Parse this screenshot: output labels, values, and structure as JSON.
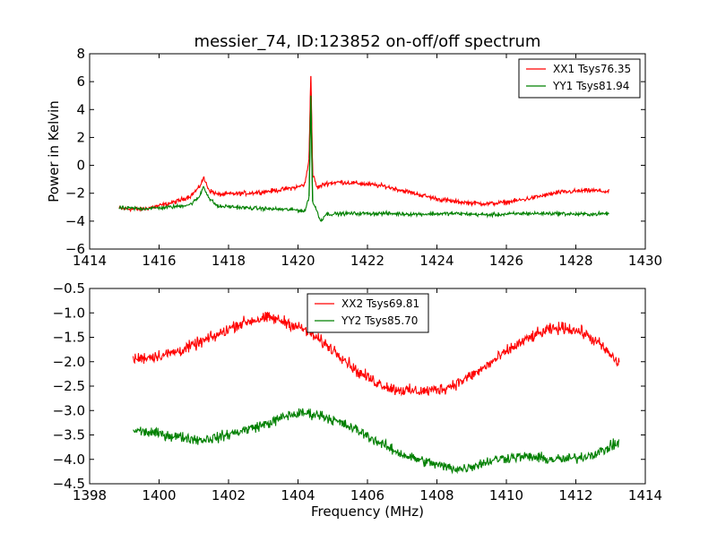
{
  "figure": {
    "title": "messier_74, ID:123852 on-off/off spectrum"
  },
  "chart_data": [
    {
      "type": "line",
      "title": "messier_74, ID:123852 on-off/off spectrum",
      "xlabel": "",
      "ylabel": "Power in Kelvin",
      "xlim": [
        1414,
        1430
      ],
      "ylim": [
        -6,
        8
      ],
      "xticks": [
        "1414",
        "1416",
        "1418",
        "1420",
        "1422",
        "1424",
        "1426",
        "1428",
        "1430"
      ],
      "yticks": [
        "−6",
        "−4",
        "−2",
        "0",
        "2",
        "4",
        "6",
        "8"
      ],
      "grid": false,
      "legend_position": "top-right",
      "series": [
        {
          "name": "XX1 Tsys76.35",
          "color": "#ff0000",
          "noise": 0.12,
          "x": [
            1414.85,
            1415.5,
            1416.0,
            1416.5,
            1416.9,
            1417.15,
            1417.28,
            1417.45,
            1417.7,
            1418.0,
            1418.5,
            1419.0,
            1419.5,
            1420.0,
            1420.2,
            1420.32,
            1420.37,
            1420.42,
            1420.55,
            1420.8,
            1421.2,
            1421.8,
            1422.5,
            1423.0,
            1423.5,
            1424.0,
            1424.5,
            1425.0,
            1425.5,
            1426.0,
            1426.5,
            1427.0,
            1427.5,
            1428.0,
            1428.5,
            1428.95
          ],
          "y": [
            -3.1,
            -3.15,
            -2.9,
            -2.6,
            -2.2,
            -1.6,
            -0.9,
            -1.8,
            -2.1,
            -2.05,
            -2.0,
            -1.9,
            -1.75,
            -1.55,
            -1.35,
            0.5,
            6.4,
            -0.6,
            -1.6,
            -1.3,
            -1.2,
            -1.3,
            -1.5,
            -1.8,
            -2.1,
            -2.4,
            -2.6,
            -2.7,
            -2.75,
            -2.65,
            -2.45,
            -2.2,
            -1.95,
            -1.85,
            -1.8,
            -1.9
          ]
        },
        {
          "name": "YY1 Tsys81.94",
          "color": "#008000",
          "noise": 0.1,
          "x": [
            1414.85,
            1415.5,
            1416.0,
            1416.5,
            1416.9,
            1417.15,
            1417.28,
            1417.45,
            1417.7,
            1418.0,
            1418.5,
            1419.0,
            1419.5,
            1420.0,
            1420.2,
            1420.32,
            1420.37,
            1420.42,
            1420.55,
            1420.65,
            1420.8,
            1421.5,
            1422.5,
            1423.5,
            1424.5,
            1425.5,
            1426.5,
            1427.5,
            1428.0,
            1428.5,
            1428.95
          ],
          "y": [
            -3.05,
            -3.1,
            -3.05,
            -2.95,
            -2.8,
            -2.3,
            -1.5,
            -2.4,
            -2.95,
            -2.95,
            -3.05,
            -3.1,
            -3.15,
            -3.2,
            -3.3,
            -2.2,
            5.0,
            -2.6,
            -3.3,
            -4.0,
            -3.5,
            -3.45,
            -3.45,
            -3.5,
            -3.45,
            -3.55,
            -3.45,
            -3.45,
            -3.5,
            -3.5,
            -3.45
          ]
        }
      ]
    },
    {
      "type": "line",
      "title": "",
      "xlabel": "Frequency (MHz)",
      "ylabel": "",
      "xlim": [
        1398,
        1414
      ],
      "ylim": [
        -4.5,
        -0.5
      ],
      "xticks": [
        "1398",
        "1400",
        "1402",
        "1404",
        "1406",
        "1408",
        "1410",
        "1412",
        "1414"
      ],
      "yticks": [
        "−4.5",
        "−4.0",
        "−3.5",
        "−3.0",
        "−2.5",
        "−2.0",
        "−1.5",
        "−1.0",
        "−0.5"
      ],
      "grid": false,
      "legend_position": "upper-center",
      "series": [
        {
          "name": "XX2 Tsys69.81",
          "color": "#ff0000",
          "noise": 0.09,
          "x": [
            1399.25,
            1399.7,
            1400.2,
            1400.7,
            1401.2,
            1401.7,
            1402.2,
            1402.7,
            1403.2,
            1403.7,
            1404.2,
            1404.7,
            1405.2,
            1405.7,
            1406.2,
            1406.7,
            1407.2,
            1407.7,
            1408.2,
            1408.7,
            1409.2,
            1409.7,
            1410.2,
            1410.7,
            1411.2,
            1411.7,
            1412.2,
            1412.7,
            1413.25
          ],
          "y": [
            -1.95,
            -1.9,
            -1.85,
            -1.75,
            -1.6,
            -1.45,
            -1.25,
            -1.15,
            -1.1,
            -1.2,
            -1.35,
            -1.6,
            -1.85,
            -2.2,
            -2.4,
            -2.55,
            -2.6,
            -2.6,
            -2.55,
            -2.4,
            -2.2,
            -1.95,
            -1.7,
            -1.5,
            -1.35,
            -1.3,
            -1.4,
            -1.65,
            -2.05
          ]
        },
        {
          "name": "YY2 Tsys85.70",
          "color": "#008000",
          "noise": 0.08,
          "x": [
            1399.25,
            1399.7,
            1400.2,
            1400.7,
            1401.2,
            1401.7,
            1402.2,
            1402.7,
            1403.2,
            1403.7,
            1404.2,
            1404.7,
            1405.2,
            1405.7,
            1406.2,
            1406.7,
            1407.2,
            1407.7,
            1408.2,
            1408.7,
            1409.2,
            1409.7,
            1410.2,
            1410.7,
            1411.2,
            1411.7,
            1412.2,
            1412.7,
            1413.25
          ],
          "y": [
            -3.4,
            -3.45,
            -3.5,
            -3.55,
            -3.6,
            -3.55,
            -3.45,
            -3.35,
            -3.25,
            -3.1,
            -3.05,
            -3.1,
            -3.25,
            -3.4,
            -3.6,
            -3.8,
            -3.95,
            -4.05,
            -4.15,
            -4.2,
            -4.1,
            -4.0,
            -3.95,
            -3.95,
            -4.0,
            -4.0,
            -3.95,
            -3.85,
            -3.65
          ]
        }
      ]
    }
  ]
}
